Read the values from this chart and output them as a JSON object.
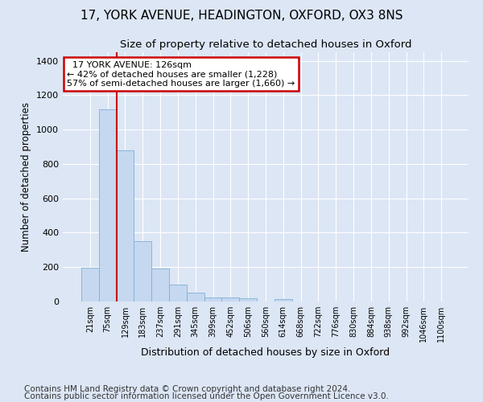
{
  "title_line1": "17, YORK AVENUE, HEADINGTON, OXFORD, OX3 8NS",
  "title_line2": "Size of property relative to detached houses in Oxford",
  "xlabel": "Distribution of detached houses by size in Oxford",
  "ylabel": "Number of detached properties",
  "bar_color": "#c5d8f0",
  "bar_edge_color": "#7fafd4",
  "background_color": "#dce6f5",
  "fig_background_color": "#dce6f5",
  "grid_color": "#ffffff",
  "annotation_box_color": "#cc0000",
  "categories": [
    "21sqm",
    "75sqm",
    "129sqm",
    "183sqm",
    "237sqm",
    "291sqm",
    "345sqm",
    "399sqm",
    "452sqm",
    "506sqm",
    "560sqm",
    "614sqm",
    "668sqm",
    "722sqm",
    "776sqm",
    "830sqm",
    "884sqm",
    "938sqm",
    "992sqm",
    "1046sqm",
    "1100sqm"
  ],
  "values": [
    195,
    1120,
    880,
    350,
    192,
    100,
    52,
    25,
    22,
    18,
    0,
    15,
    0,
    0,
    0,
    0,
    0,
    0,
    0,
    0,
    0
  ],
  "ylim": [
    0,
    1450
  ],
  "yticks": [
    0,
    200,
    400,
    600,
    800,
    1000,
    1200,
    1400
  ],
  "vline_position": 1.5,
  "annotation_line1": "  17 YORK AVENUE: 126sqm",
  "annotation_line2": "← 42% of detached houses are smaller (1,228)",
  "annotation_line3": "57% of semi-detached houses are larger (1,660) →",
  "footer_line1": "Contains HM Land Registry data © Crown copyright and database right 2024.",
  "footer_line2": "Contains public sector information licensed under the Open Government Licence v3.0.",
  "title_fontsize": 11,
  "subtitle_fontsize": 9.5,
  "footer_fontsize": 7.5,
  "annotation_fontsize": 8
}
